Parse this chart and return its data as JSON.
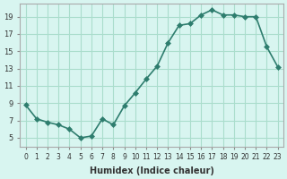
{
  "x": [
    0,
    1,
    2,
    3,
    4,
    5,
    6,
    7,
    8,
    9,
    10,
    11,
    12,
    13,
    14,
    15,
    16,
    17,
    18,
    19,
    20,
    21,
    22,
    23
  ],
  "y": [
    8.8,
    7.2,
    6.8,
    6.5,
    6.0,
    5.0,
    5.2,
    7.2,
    6.5,
    8.7,
    10.2,
    11.8,
    13.3,
    16.0,
    18.0,
    18.2,
    19.2,
    19.8,
    19.2,
    19.2,
    19.0,
    19.0,
    15.5,
    13.2
  ],
  "xlabel": "Humidex (Indice chaleur)",
  "line_color": "#2e7d6e",
  "marker": "D",
  "marker_size": 3,
  "bg_color": "#d8f5f0",
  "grid_color": "#aaddcc",
  "xlim": [
    -0.5,
    23.5
  ],
  "ylim": [
    4,
    20.5
  ],
  "yticks": [
    5,
    7,
    9,
    11,
    13,
    15,
    17,
    19
  ],
  "xticks": [
    0,
    1,
    2,
    3,
    4,
    5,
    6,
    7,
    8,
    9,
    10,
    11,
    12,
    13,
    14,
    15,
    16,
    17,
    18,
    19,
    20,
    21,
    22,
    23
  ]
}
